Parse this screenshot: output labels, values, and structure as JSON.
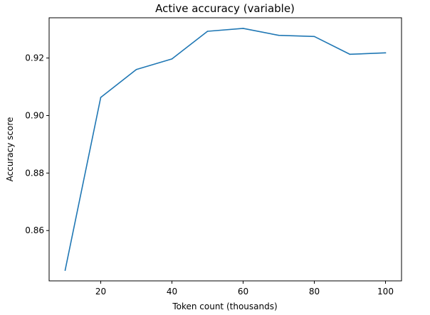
{
  "chart_data": {
    "type": "line",
    "title": "Active accuracy (variable)",
    "xlabel": "Token count (thousands)",
    "ylabel": "Accuracy score",
    "xlim": [
      5.5,
      104.5
    ],
    "ylim": [
      0.8425,
      0.934
    ],
    "xticks": [
      20,
      40,
      60,
      80,
      100
    ],
    "yticks": [
      0.86,
      0.88,
      0.9,
      0.92
    ],
    "xtick_labels": [
      "20",
      "40",
      "60",
      "80",
      "100"
    ],
    "ytick_labels": [
      "0.86",
      "0.88",
      "0.90",
      "0.92"
    ],
    "grid": false,
    "legend": "none",
    "series": [
      {
        "color": "#1f77b4",
        "x": [
          10,
          20,
          30,
          40,
          50,
          60,
          70,
          80,
          90,
          100
        ],
        "y": [
          0.8462,
          0.9063,
          0.916,
          0.9197,
          0.9293,
          0.9303,
          0.9279,
          0.9275,
          0.9213,
          0.9218
        ]
      }
    ]
  }
}
